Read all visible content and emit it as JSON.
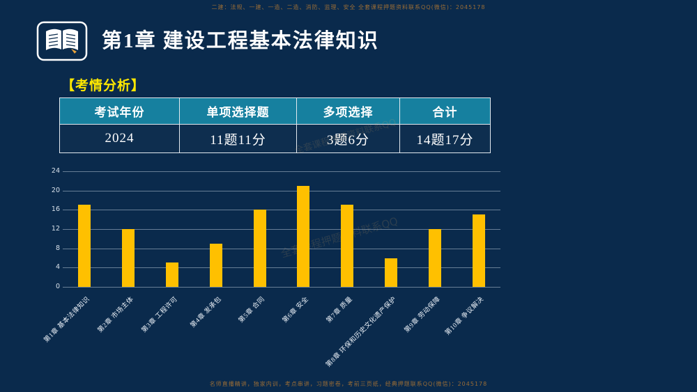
{
  "slide": {
    "bg": "#0a2a4c"
  },
  "watermarks": {
    "top": "二建：法规、一建、一造、二造、消防、监理、安全  全套课程押题资料联系QQ(微信)：2045178",
    "bottom": "名师直播精讲，独家内训，考点串讲，习题密卷，考前三页纸，经典押题联系QQ(微信)：2045178",
    "diagonal": "全套课程押题资料联系QQ"
  },
  "header": {
    "title": "第1章  建设工程基本法律知识"
  },
  "section": {
    "label": "【考情分析】"
  },
  "table": {
    "headers": [
      "考试年份",
      "单项选择题",
      "多项选择",
      "合计"
    ],
    "rows": [
      [
        "2024",
        "11题11分",
        "3题6分",
        "14题17分"
      ]
    ]
  },
  "chart_data": {
    "type": "bar",
    "categories": [
      "第1章 基本法律知识",
      "第2章 市场主体",
      "第3章 工程许可",
      "第4章 发承包",
      "第5章 合同",
      "第6章 安全",
      "第7章 质量",
      "第8章 环保和历史文化遗产保护",
      "第9章 劳动保障",
      "第10章 争议解决"
    ],
    "values": [
      17,
      12,
      5,
      9,
      16,
      21,
      17,
      6,
      12,
      15
    ],
    "title": "",
    "xlabel": "",
    "ylabel": "",
    "ylim": [
      0,
      24
    ],
    "yticks": [
      0,
      4,
      8,
      12,
      16,
      20,
      24
    ],
    "bar_color": "#FFC000",
    "grid": true,
    "legend": false
  }
}
